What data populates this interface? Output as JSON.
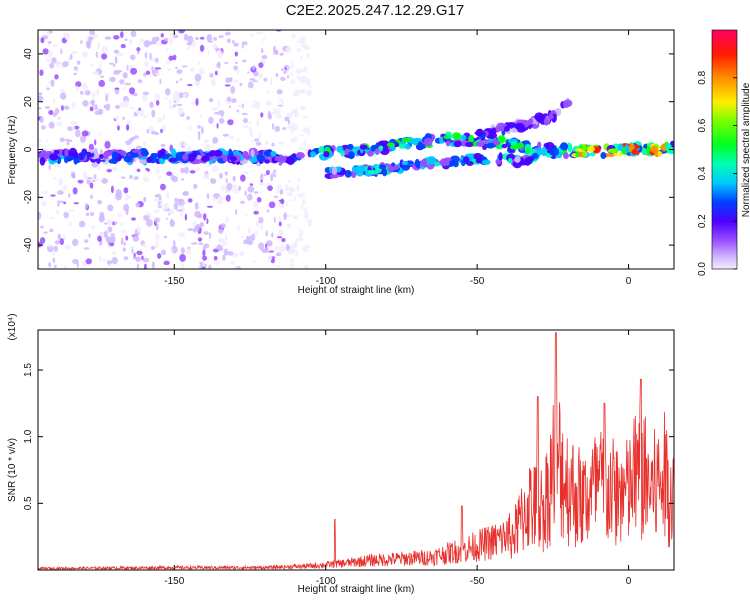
{
  "title": "C2E2.2025.247.12.29.G17",
  "chart_data": [
    {
      "type": "heatmap",
      "xlabel": "Height of straight line (km)",
      "ylabel": "Frequency (Hz)",
      "xlim": [
        -195,
        15
      ],
      "ylim": [
        -50,
        50
      ],
      "xticks": [
        -150,
        -100,
        -50,
        0
      ],
      "yticks": [
        -40,
        -20,
        0,
        20,
        40
      ],
      "colorbar": {
        "label": "Normalized spectral amplitude",
        "range": [
          0,
          1
        ],
        "ticks": [
          0.0,
          0.2,
          0.4,
          0.6,
          0.8
        ]
      },
      "band": {
        "center_freq": [
          {
            "x": -195,
            "y": -3
          },
          {
            "x": -150,
            "y": -3
          },
          {
            "x": -110,
            "y": -3
          },
          {
            "x": -95,
            "y": -1
          },
          {
            "x": -80,
            "y": 1
          },
          {
            "x": -70,
            "y": 3
          },
          {
            "x": -60,
            "y": 4
          },
          {
            "x": -45,
            "y": 3
          },
          {
            "x": -30,
            "y": 0
          },
          {
            "x": -15,
            "y": -1
          },
          {
            "x": 0,
            "y": 0
          },
          {
            "x": 15,
            "y": 0
          }
        ],
        "secondary_branch": [
          {
            "x": -100,
            "y": -10
          },
          {
            "x": -80,
            "y": -8
          },
          {
            "x": -60,
            "y": -5
          },
          {
            "x": -45,
            "y": -4
          },
          {
            "x": -35,
            "y": -5
          },
          {
            "x": -30,
            "y": -3
          }
        ],
        "upper_branch": [
          {
            "x": -50,
            "y": 6
          },
          {
            "x": -35,
            "y": 10
          },
          {
            "x": -25,
            "y": 14
          },
          {
            "x": -20,
            "y": 20
          }
        ],
        "peak_amplitude": [
          {
            "x": -195,
            "y": 0.4
          },
          {
            "x": -150,
            "y": 0.42
          },
          {
            "x": -110,
            "y": 0.45
          },
          {
            "x": -100,
            "y": 0.55
          },
          {
            "x": -80,
            "y": 0.62
          },
          {
            "x": -60,
            "y": 0.6
          },
          {
            "x": -40,
            "y": 0.6
          },
          {
            "x": -20,
            "y": 0.55
          },
          {
            "x": -15,
            "y": 0.95
          },
          {
            "x": 0,
            "y": 0.95
          },
          {
            "x": 10,
            "y": 1.0
          },
          {
            "x": 15,
            "y": 0.7
          }
        ]
      }
    },
    {
      "type": "line",
      "xlabel": "Height of straight line (km)",
      "ylabel": "SNR (10 * v/v)",
      "yscale_label": "(x10⁴)",
      "xlim": [
        -195,
        15
      ],
      "ylim": [
        0,
        1.8
      ],
      "xticks": [
        -150,
        -100,
        -50,
        0
      ],
      "yticks": [
        0.5,
        1.0,
        1.5
      ],
      "ytick_labels": [
        "0.5",
        "1.0",
        "1.5"
      ],
      "color": "#e8302c",
      "series": [
        {
          "envelope": [
            {
              "x": -195,
              "y": 0.02
            },
            {
              "x": -150,
              "y": 0.03
            },
            {
              "x": -120,
              "y": 0.03
            },
            {
              "x": -105,
              "y": 0.05
            },
            {
              "x": -95,
              "y": 0.08
            },
            {
              "x": -85,
              "y": 0.12
            },
            {
              "x": -75,
              "y": 0.14
            },
            {
              "x": -65,
              "y": 0.16
            },
            {
              "x": -55,
              "y": 0.25
            },
            {
              "x": -45,
              "y": 0.35
            },
            {
              "x": -38,
              "y": 0.45
            },
            {
              "x": -33,
              "y": 0.85
            },
            {
              "x": -28,
              "y": 0.8
            },
            {
              "x": -24,
              "y": 1.5
            },
            {
              "x": -20,
              "y": 1.1
            },
            {
              "x": -15,
              "y": 0.9
            },
            {
              "x": -10,
              "y": 1.1
            },
            {
              "x": -5,
              "y": 1.0
            },
            {
              "x": 0,
              "y": 1.0
            },
            {
              "x": 3,
              "y": 1.3
            },
            {
              "x": 8,
              "y": 1.05
            },
            {
              "x": 12,
              "y": 1.2
            },
            {
              "x": 15,
              "y": 1.02
            }
          ],
          "spikes": [
            {
              "x": -97,
              "y": 0.38
            },
            {
              "x": -55,
              "y": 0.48
            },
            {
              "x": -30,
              "y": 1.3
            },
            {
              "x": -24,
              "y": 1.78
            },
            {
              "x": -8,
              "y": 1.25
            },
            {
              "x": 4,
              "y": 1.43
            }
          ]
        }
      ]
    }
  ]
}
